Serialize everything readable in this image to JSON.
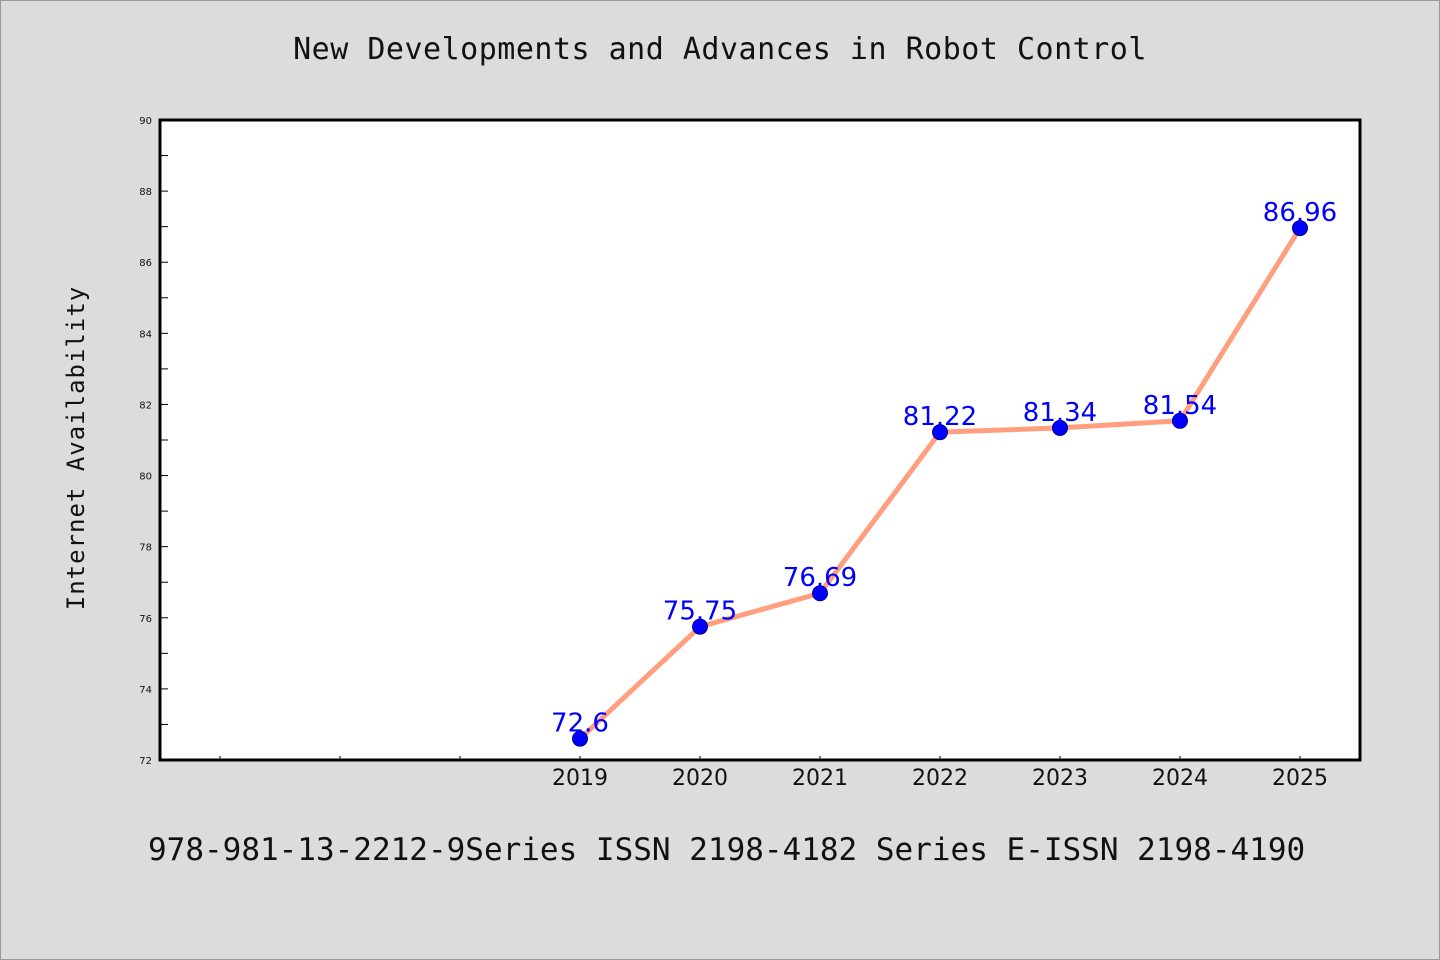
{
  "chart_data": {
    "type": "line",
    "title": "New Developments and Advances in Robot Control",
    "xlabel": "",
    "ylabel": "Internet Availability",
    "x": [
      "2019",
      "2020",
      "2021",
      "2022",
      "2023",
      "2024",
      "2025"
    ],
    "series": [
      {
        "values": [
          72.6,
          75.75,
          76.69,
          81.22,
          81.34,
          81.54,
          86.96
        ],
        "labels": [
          "72.6",
          "75.75",
          "76.69",
          "81.22",
          "81.34",
          "81.54",
          "86.96"
        ],
        "line_color": "#ff9f7f",
        "marker_color": "#0000ff"
      }
    ],
    "ylim": [
      72,
      90
    ],
    "yticks": [
      "72",
      "74",
      "76",
      "78",
      "80",
      "82",
      "84",
      "86",
      "88",
      "90"
    ],
    "grid": false,
    "footer": "978-981-13-2212-9Series ISSN 2198-4182 Series E-ISSN 2198-4190"
  }
}
